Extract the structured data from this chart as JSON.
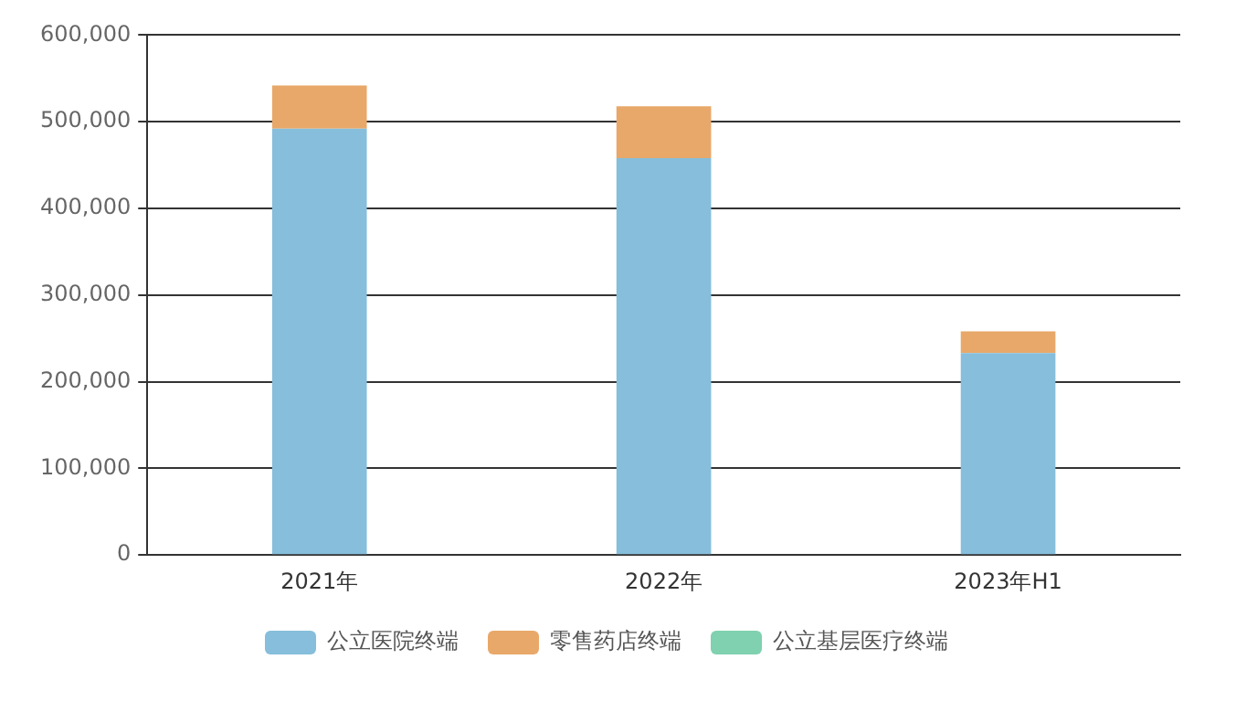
{
  "chart_data": {
    "type": "bar",
    "stacked": true,
    "categories": [
      "2021年",
      "2022年",
      "2023年H1"
    ],
    "series": [
      {
        "name": "公立医院终端",
        "color": "#86bedb",
        "values": [
          492000,
          458000,
          233000
        ]
      },
      {
        "name": "零售药店终端",
        "color": "#e8a86a",
        "values": [
          50000,
          60000,
          25000
        ]
      },
      {
        "name": "公立基层医疗终端",
        "color": "#7fd1b0",
        "values": [
          null,
          null,
          null
        ]
      }
    ],
    "ylim": [
      0,
      600000
    ],
    "yticks": [
      {
        "value": 0,
        "label": "0"
      },
      {
        "value": 100000,
        "label": "100,000"
      },
      {
        "value": 200000,
        "label": "200,000"
      },
      {
        "value": 300000,
        "label": "300,000"
      },
      {
        "value": 400000,
        "label": "400,000"
      },
      {
        "value": 500000,
        "label": "500,000"
      },
      {
        "value": 600000,
        "label": "600,000"
      }
    ],
    "grid": "y",
    "legend": "bottom"
  }
}
